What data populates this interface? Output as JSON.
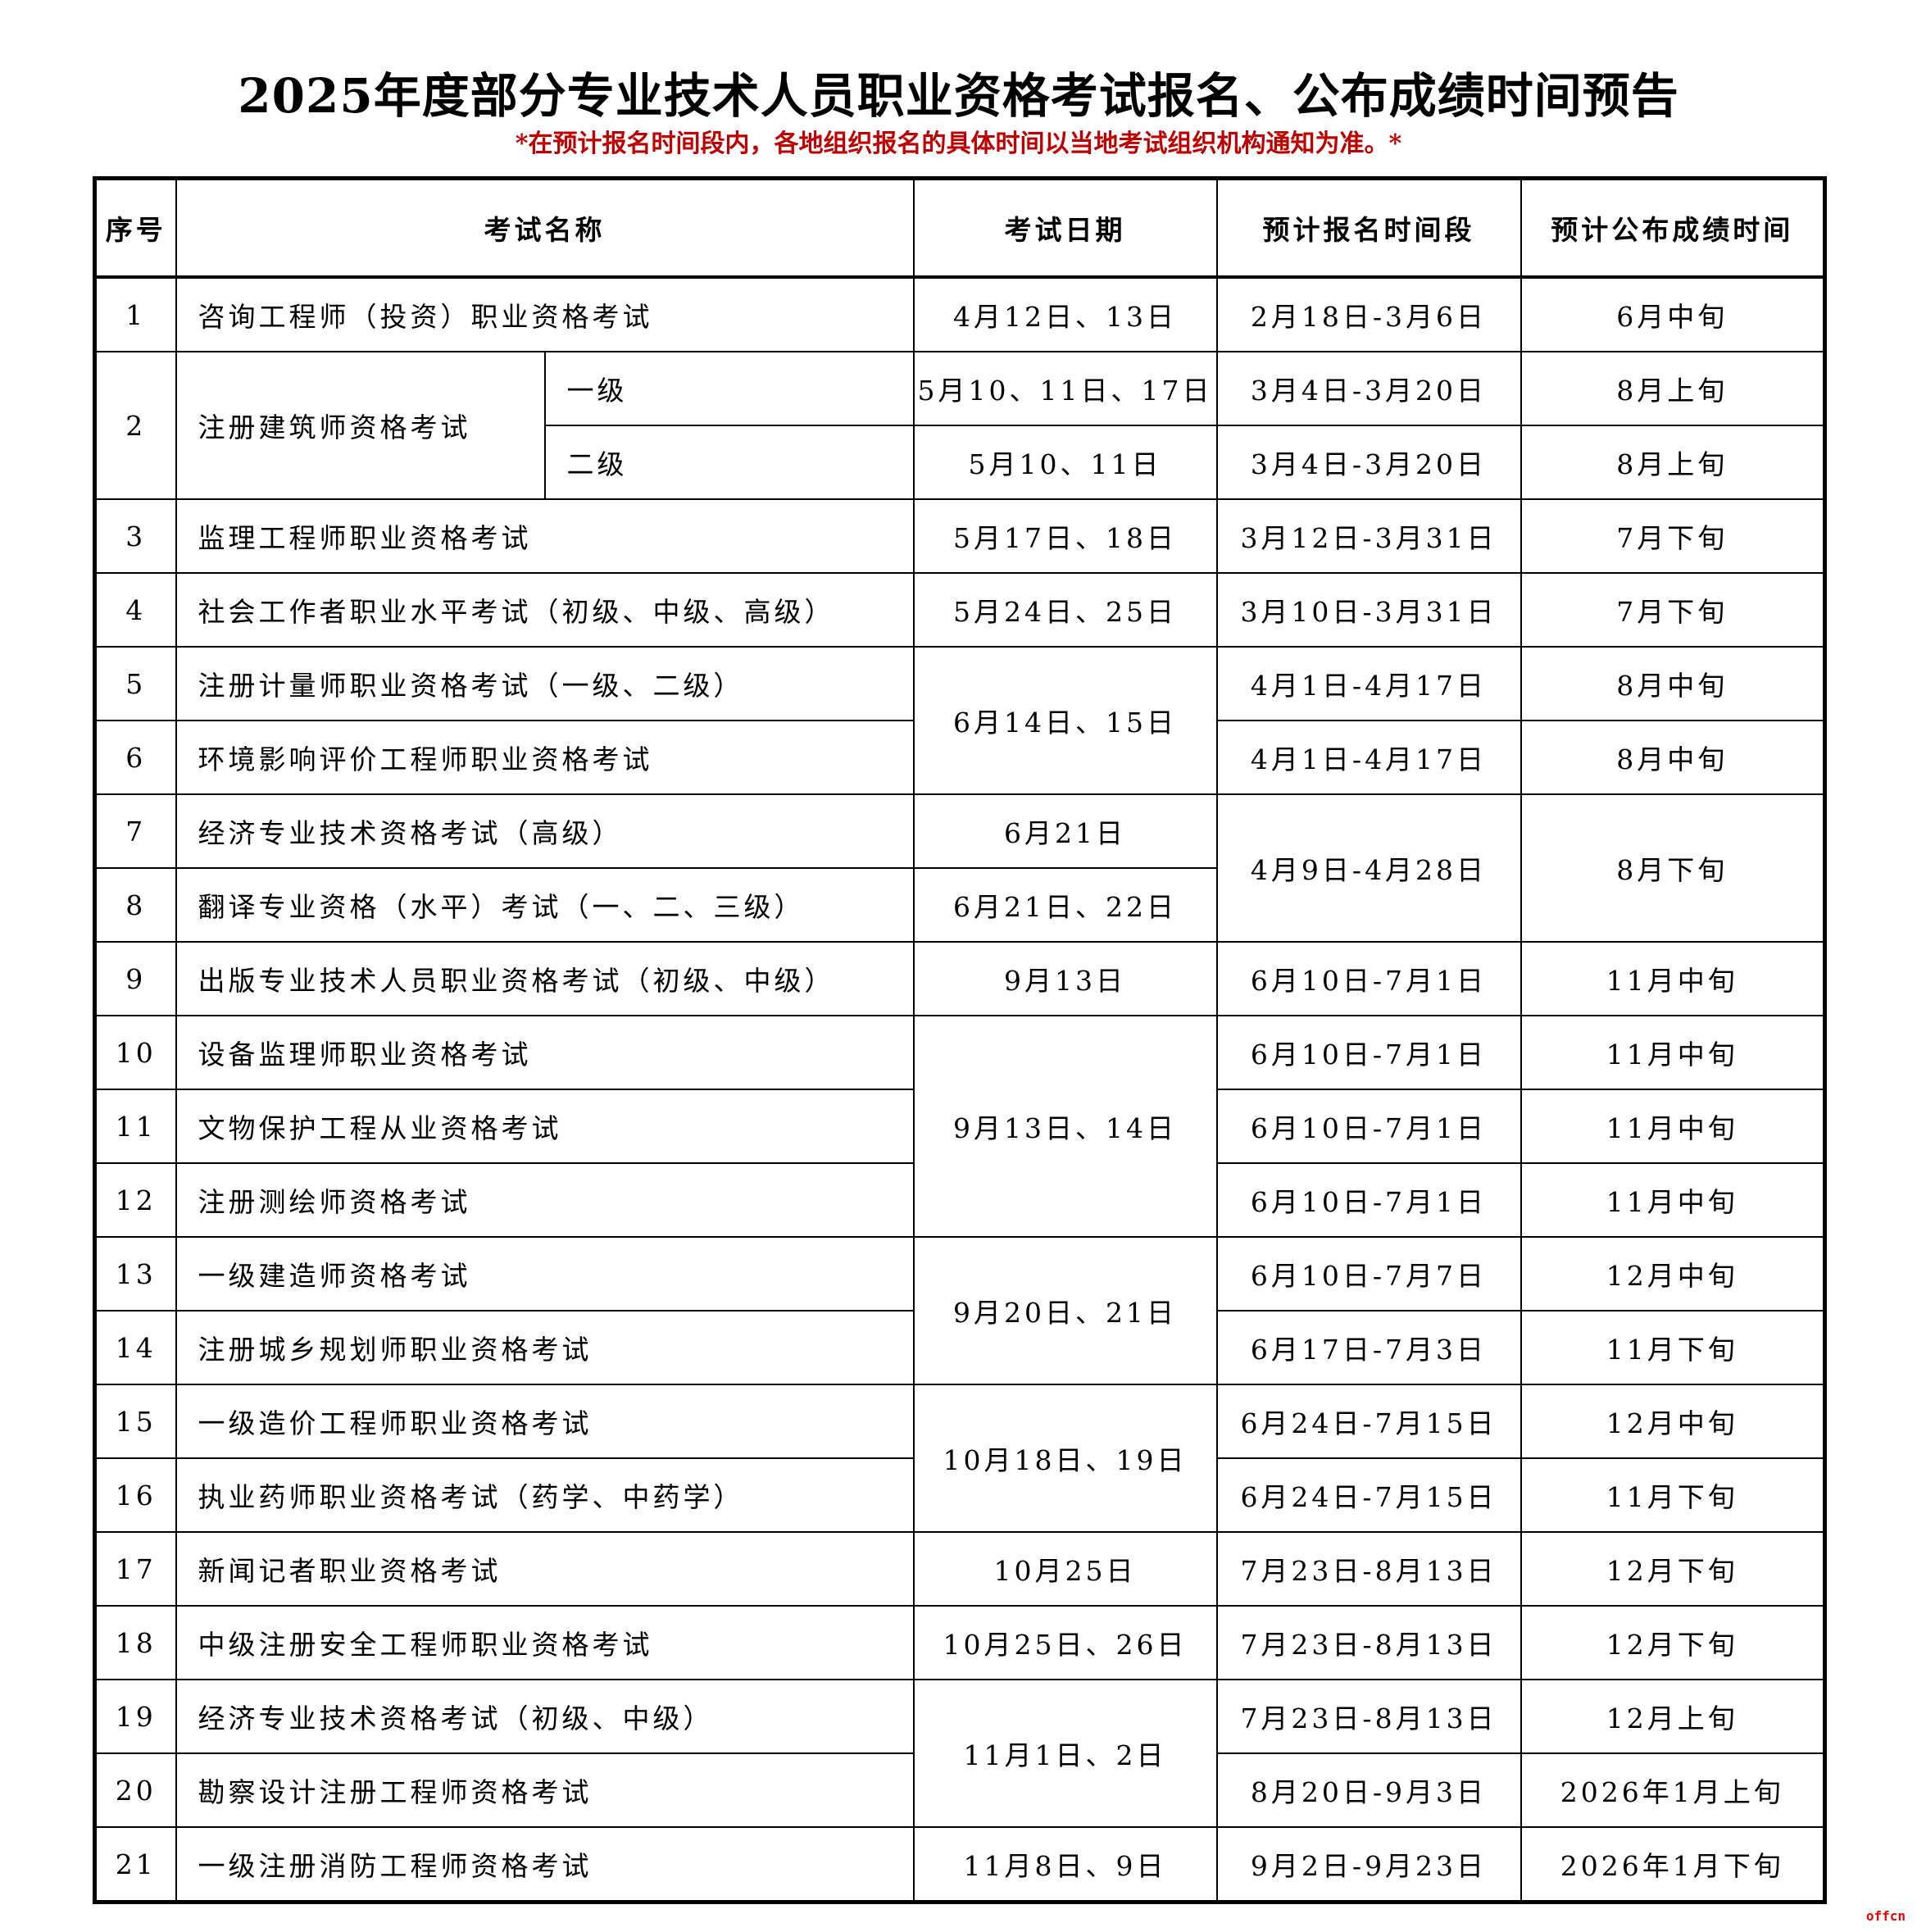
{
  "title": "2025年度部分专业技术人员职业资格考试报名、公布成绩时间预告",
  "subtitle": "*在预计报名时间段内，各地组织报名的具体时间以当地考试组织机构通知为准。*",
  "watermark": "offcn",
  "headers": [
    "序号",
    "考试名称",
    "考试日期",
    "预计报名时间段",
    "预计公布成绩时间"
  ],
  "rows": [
    {
      "no": "1",
      "name": "咨询工程师（投资）职业资格考试",
      "date": "4月12日、13日",
      "reg": "2月18日-3月6日",
      "result": "6月中旬"
    },
    {
      "no": "2",
      "name": "注册建筑师资格考试",
      "level": "一级",
      "date": "5月10、11日、17日",
      "reg": "3月4日-3月20日",
      "result": "8月上旬",
      "no_span": 2,
      "name_span": 2
    },
    {
      "level": "二级",
      "date": "5月10、11日",
      "reg": "3月4日-3月20日",
      "result": "8月上旬"
    },
    {
      "no": "3",
      "name": "监理工程师职业资格考试",
      "date": "5月17日、18日",
      "reg": "3月12日-3月31日",
      "result": "7月下旬"
    },
    {
      "no": "4",
      "name": "社会工作者职业水平考试（初级、中级、高级）",
      "date": "5月24日、25日",
      "reg": "3月10日-3月31日",
      "result": "7月下旬"
    },
    {
      "no": "5",
      "name": "注册计量师职业资格考试（一级、二级）",
      "date": "6月14日、15日",
      "date_span": 2,
      "reg": "4月1日-4月17日",
      "result": "8月中旬"
    },
    {
      "no": "6",
      "name": "环境影响评价工程师职业资格考试",
      "reg": "4月1日-4月17日",
      "result": "8月中旬"
    },
    {
      "no": "7",
      "name": "经济专业技术资格考试（高级）",
      "date": "6月21日",
      "reg": "4月9日-4月28日",
      "reg_span": 2,
      "result": "8月下旬",
      "result_span": 2
    },
    {
      "no": "8",
      "name": "翻译专业资格（水平）考试（一、二、三级）",
      "date": "6月21日、22日"
    },
    {
      "no": "9",
      "name": "出版专业技术人员职业资格考试（初级、中级）",
      "date": "9月13日",
      "reg": "6月10日-7月1日",
      "result": "11月中旬"
    },
    {
      "no": "10",
      "name": "设备监理师职业资格考试",
      "date": "9月13日、14日",
      "date_span": 3,
      "reg": "6月10日-7月1日",
      "result": "11月中旬"
    },
    {
      "no": "11",
      "name": "文物保护工程从业资格考试",
      "reg": "6月10日-7月1日",
      "result": "11月中旬"
    },
    {
      "no": "12",
      "name": "注册测绘师资格考试",
      "reg": "6月10日-7月1日",
      "result": "11月中旬"
    },
    {
      "no": "13",
      "name": "一级建造师资格考试",
      "date": "9月20日、21日",
      "date_span": 2,
      "reg": "6月10日-7月7日",
      "result": "12月中旬"
    },
    {
      "no": "14",
      "name": "注册城乡规划师职业资格考试",
      "reg": "6月17日-7月3日",
      "result": "11月下旬"
    },
    {
      "no": "15",
      "name": "一级造价工程师职业资格考试",
      "date": "10月18日、19日",
      "date_span": 2,
      "reg": "6月24日-7月15日",
      "result": "12月中旬"
    },
    {
      "no": "16",
      "name": "执业药师职业资格考试（药学、中药学）",
      "reg": "6月24日-7月15日",
      "result": "11月下旬"
    },
    {
      "no": "17",
      "name": "新闻记者职业资格考试",
      "date": "10月25日",
      "reg": "7月23日-8月13日",
      "result": "12月下旬"
    },
    {
      "no": "18",
      "name": "中级注册安全工程师职业资格考试",
      "date": "10月25日、26日",
      "reg": "7月23日-8月13日",
      "result": "12月下旬"
    },
    {
      "no": "19",
      "name": "经济专业技术资格考试（初级、中级）",
      "date": "11月1日、2日",
      "date_span": 2,
      "reg": "7月23日-8月13日",
      "result": "12月上旬"
    },
    {
      "no": "20",
      "name": "勘察设计注册工程师资格考试",
      "reg": "8月20日-9月3日",
      "result": "2026年1月上旬"
    },
    {
      "no": "21",
      "name": "一级注册消防工程师资格考试",
      "date": "11月8日、9日",
      "reg": "9月2日-9月23日",
      "result": "2026年1月下旬"
    }
  ]
}
